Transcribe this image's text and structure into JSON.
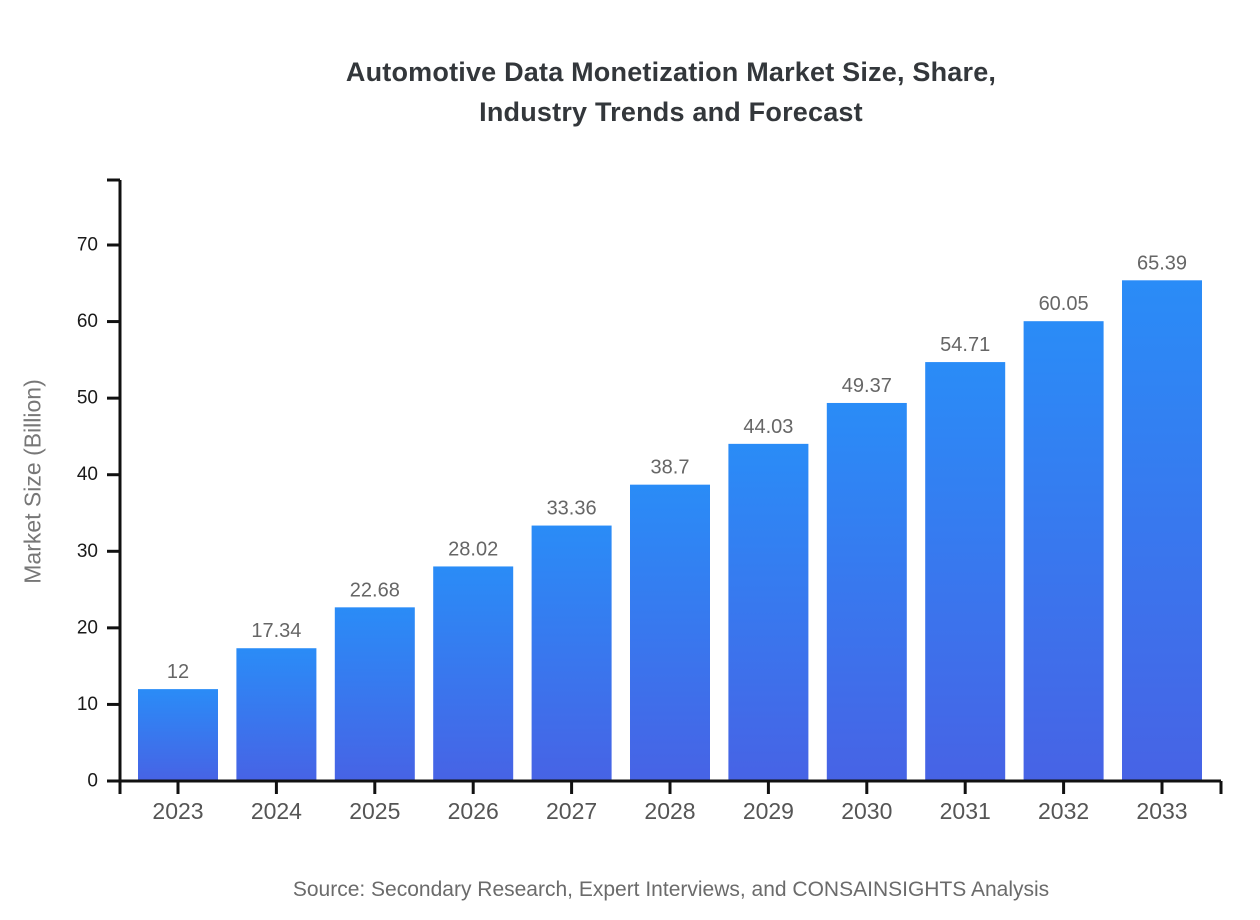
{
  "chart_data": {
    "type": "bar",
    "title_lines": [
      "Automotive Data Monetization Market Size, Share,",
      "Industry Trends and Forecast"
    ],
    "ylabel": "Market Size (Billion)",
    "xlabel": "",
    "categories": [
      "2023",
      "2024",
      "2025",
      "2026",
      "2027",
      "2028",
      "2029",
      "2030",
      "2031",
      "2032",
      "2033"
    ],
    "values": [
      12,
      17.34,
      22.68,
      28.02,
      33.36,
      38.7,
      44.03,
      49.37,
      54.71,
      60.05,
      65.39
    ],
    "value_labels": [
      "12",
      "17.34",
      "22.68",
      "28.02",
      "33.36",
      "38.7",
      "44.03",
      "49.37",
      "54.71",
      "60.05",
      "65.39"
    ],
    "yticks": [
      0,
      10,
      20,
      30,
      40,
      50,
      60,
      70
    ],
    "ylim": [
      0,
      78.5
    ],
    "grid": false,
    "legend": "none",
    "source": "Source: Secondary Research, Expert Interviews, and CONSAINSIGHTS Analysis",
    "colors": {
      "bar_gradient_top": "#2a8cf7",
      "bar_gradient_bottom": "#4763e5",
      "axis": "#111111",
      "ytick_label": "#1a1a1a",
      "xtick_label": "#555555",
      "value_label": "#666666",
      "title": "#33373b",
      "ylabel": "#777777",
      "source": "#6b6b6b"
    }
  }
}
